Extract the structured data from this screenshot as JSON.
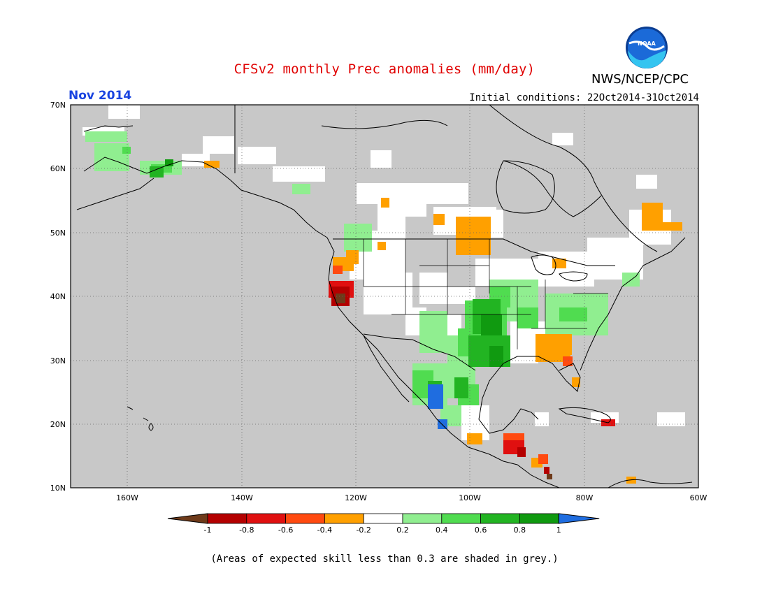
{
  "header": {
    "title": "CFSv2 monthly Prec anomalies (mm/day)",
    "month": "Nov 2014",
    "org": "NWS/NCEP/CPC",
    "logo_text": "NOAA",
    "initial_conditions": "Initial conditions: 22Oct2014-31Oct2014"
  },
  "map": {
    "lat_ticks": [
      "70N",
      "60N",
      "50N",
      "40N",
      "30N",
      "20N",
      "10N"
    ],
    "lon_ticks": [
      "160W",
      "140W",
      "120W",
      "100W",
      "80W",
      "60W"
    ],
    "extent": {
      "lon_min": -170,
      "lon_max": -60,
      "lat_min": 10,
      "lat_max": 70
    },
    "background_color": "#c8c8c8"
  },
  "colorbar": {
    "labels": [
      "-1",
      "-0.8",
      "-0.6",
      "-0.4",
      "-0.2",
      "0.2",
      "0.4",
      "0.6",
      "0.8",
      "1"
    ],
    "colors": [
      "#6e3a1a",
      "#b40000",
      "#e01010",
      "#ff4a10",
      "#ffa000",
      "#ffffff",
      "#90ee90",
      "#50dc50",
      "#22b422",
      "#109a10",
      "#1f6de0"
    ]
  },
  "footnote": "(Areas of expected skill less than 0.3 are shaded in grey.)"
}
